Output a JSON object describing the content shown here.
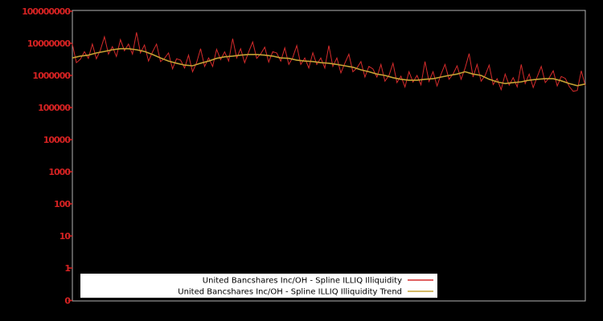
{
  "colors": {
    "background": "#000000",
    "axis_labels": "#d42222",
    "plot_border": "#b4b4b4",
    "legend_background": "#ffffff",
    "series_illiquidity": "#d62b2b",
    "series_trend": "#c5a233"
  },
  "chart_data": {
    "type": "line",
    "title": "",
    "background": "#000000",
    "grid": false,
    "x_axis": {
      "tick_labels": [],
      "note": "no visible x-axis tick labels"
    },
    "y_axis": {
      "scale": "log",
      "tick_labels": [
        "0",
        "1",
        "10",
        "100",
        "1000",
        "10000",
        "100000",
        "1000000",
        "10000000",
        "100000000"
      ],
      "ylim_top": 1000000000.0
    },
    "legend": {
      "position": "bottom-center",
      "entries": [
        {
          "label": "United Bancshares Inc/OH - Spline ILLIQ Illiquidity",
          "color": "#d62b2b"
        },
        {
          "label": "United Bancshares Inc/OH - Spline ILLIQ Illiquidity Trend",
          "color": "#c5a233"
        }
      ]
    },
    "series": [
      {
        "name": "United Bancshares Inc/OH - Spline ILLIQ Illiquidity",
        "color": "#d62b2b",
        "x_spacing": "uniform",
        "values": [
          9500000.0,
          2500000.0,
          3200000.0,
          5500000.0,
          3400000.0,
          9500000.0,
          3300000.0,
          6200000.0,
          16000000.0,
          4600000.0,
          7900000.0,
          3900000.0,
          13000000.0,
          5900000.0,
          9500000.0,
          4600000.0,
          22000000.0,
          5000000.0,
          8900000.0,
          2800000.0,
          5400000.0,
          9500000.0,
          2700000.0,
          3400000.0,
          5000000.0,
          1600000.0,
          3300000.0,
          3000000.0,
          1700000.0,
          4300000.0,
          1300000.0,
          2500000.0,
          6800000.0,
          1900000.0,
          3500000.0,
          1900000.0,
          6500000.0,
          3100000.0,
          5400000.0,
          2800000.0,
          14000000.0,
          3500000.0,
          6800000.0,
          2500000.0,
          5400000.0,
          11000000.0,
          3400000.0,
          4700000.0,
          7600000.0,
          2600000.0,
          5500000.0,
          5000000.0,
          2800000.0,
          7200000.0,
          2200000.0,
          3600000.0,
          8500000.0,
          2200000.0,
          3500000.0,
          1700000.0,
          5100000.0,
          2200000.0,
          3500000.0,
          1700000.0,
          8500000.0,
          1900000.0,
          3500000.0,
          1200000.0,
          2400000.0,
          4600000.0,
          1300000.0,
          1700000.0,
          2700000.0,
          890000.0,
          1900000.0,
          1600000.0,
          890000.0,
          2200000.0,
          660000.0,
          1000000.0,
          2400000.0,
          600000.0,
          950000.0,
          440000.0,
          1300000.0,
          620000.0,
          1000000.0,
          510000.0,
          2700000.0,
          650000.0,
          1300000.0,
          470000.0,
          1100000.0,
          2200000.0,
          760000.0,
          1100000.0,
          2000000.0,
          760000.0,
          1700000.0,
          4800000.0,
          890000.0,
          2200000.0,
          660000.0,
          1000000.0,
          2100000.0,
          520000.0,
          790000.0,
          360000.0,
          1100000.0,
          500000.0,
          850000.0,
          440000.0,
          2200000.0,
          560000.0,
          1100000.0,
          420000.0,
          910000.0,
          1900000.0,
          600000.0,
          850000.0,
          1400000.0,
          470000.0,
          930000.0,
          810000.0,
          450000.0,
          320000.0,
          340000.0,
          1400000.0,
          480000.0
        ]
      },
      {
        "name": "United Bancshares Inc/OH - Spline ILLIQ Illiquidity Trend",
        "color": "#c5a233",
        "x_spacing": "uniform",
        "values": [
          3500000.0,
          4000000.0,
          4300000.0,
          5000000.0,
          5600000.0,
          6300000.0,
          6800000.0,
          6800000.0,
          6300000.0,
          5600000.0,
          4500000.0,
          3500000.0,
          2800000.0,
          2400000.0,
          2100000.0,
          2000000.0,
          2400000.0,
          2800000.0,
          3400000.0,
          3800000.0,
          4000000.0,
          4300000.0,
          4500000.0,
          4500000.0,
          4300000.0,
          4000000.0,
          3500000.0,
          3400000.0,
          3000000.0,
          2800000.0,
          2700000.0,
          2500000.0,
          2400000.0,
          2200000.0,
          2000000.0,
          1800000.0,
          1500000.0,
          1300000.0,
          1100000.0,
          1000000.0,
          850000.0,
          760000.0,
          710000.0,
          710000.0,
          760000.0,
          790000.0,
          890000.0,
          1000000.0,
          1100000.0,
          1300000.0,
          1100000.0,
          1000000.0,
          760000.0,
          630000.0,
          560000.0,
          600000.0,
          630000.0,
          710000.0,
          760000.0,
          790000.0,
          790000.0,
          680000.0,
          560000.0,
          480000.0,
          540000.0
        ]
      }
    ]
  }
}
